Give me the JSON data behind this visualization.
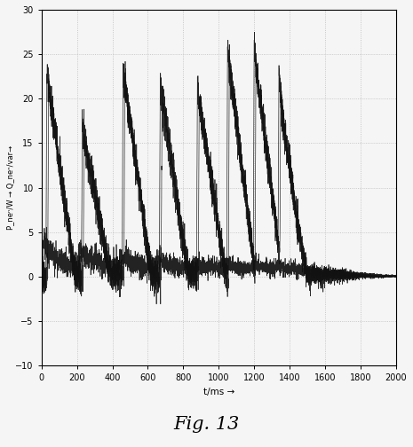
{
  "title": "Fig. 13",
  "xlabel": "t/ms →",
  "ylabel": "P_neⁿ/W → Q_neⁿ/var→",
  "xlim": [
    0,
    2000
  ],
  "ylim": [
    -10,
    30
  ],
  "xticks": [
    0,
    200,
    400,
    600,
    800,
    1000,
    1200,
    1400,
    1600,
    1800,
    2000
  ],
  "yticks": [
    -10,
    -5,
    0,
    5,
    10,
    15,
    20,
    25,
    30
  ],
  "grid_color": "#bbbbbb",
  "line_color": "#111111",
  "bg_color": "#f5f5f5",
  "figsize": [
    4.65,
    5.04
  ],
  "dpi": 100,
  "spike_centers": [
    30,
    230,
    460,
    670,
    880,
    1050,
    1200,
    1340
  ],
  "spike_peaks1": [
    23,
    17,
    23,
    22,
    21,
    25.5,
    25,
    20
  ],
  "spike_peaks2": [
    21,
    15,
    22,
    19,
    20,
    23,
    24,
    19
  ],
  "spike_fall_duration": 160,
  "noise_amplitude": 0.9,
  "low_signal_base": 2.0,
  "low_signal_noise": 1.0
}
